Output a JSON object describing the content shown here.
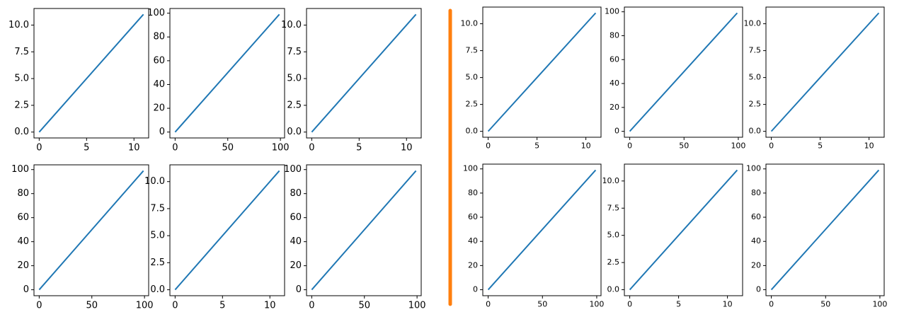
{
  "chart_data": [
    {
      "type": "line",
      "x": [
        0,
        11
      ],
      "values": [
        0,
        11
      ],
      "color": "#1f77b4",
      "xlim": [
        -0.55,
        11.55
      ],
      "ylim": [
        -0.55,
        11.55
      ],
      "xticks": [
        0,
        5,
        10
      ],
      "yticks": [
        {
          "value": 0,
          "label": "0.0"
        },
        {
          "value": 2.5,
          "label": "2.5"
        },
        {
          "value": 5,
          "label": "5.0"
        },
        {
          "value": 7.5,
          "label": "7.5"
        },
        {
          "value": 10,
          "label": "10.0"
        }
      ]
    },
    {
      "type": "line",
      "x": [
        0,
        99
      ],
      "values": [
        0,
        99
      ],
      "color": "#1f77b4",
      "xlim": [
        -4.95,
        103.95
      ],
      "ylim": [
        -4.95,
        103.95
      ],
      "xticks": [
        0,
        50,
        100
      ],
      "yticks": [
        0,
        20,
        40,
        60,
        80,
        100
      ]
    },
    {
      "type": "line",
      "x": [
        0,
        11
      ],
      "values": [
        0,
        11
      ],
      "color": "#1f77b4",
      "xlim": [
        -0.55,
        11.55
      ],
      "ylim": [
        -0.55,
        11.55
      ],
      "xticks": [
        0,
        5,
        10
      ],
      "yticks": [
        {
          "value": 0,
          "label": "0.0"
        },
        {
          "value": 2.5,
          "label": "2.5"
        },
        {
          "value": 5,
          "label": "5.0"
        },
        {
          "value": 7.5,
          "label": "7.5"
        },
        {
          "value": 10,
          "label": "10.0"
        }
      ]
    },
    {
      "type": "line",
      "x": [
        0,
        99
      ],
      "values": [
        0,
        99
      ],
      "color": "#1f77b4",
      "xlim": [
        -4.95,
        103.95
      ],
      "ylim": [
        -4.95,
        103.95
      ],
      "xticks": [
        0,
        50,
        100
      ],
      "yticks": [
        0,
        20,
        40,
        60,
        80,
        100
      ]
    },
    {
      "type": "line",
      "x": [
        0,
        11
      ],
      "values": [
        0,
        11
      ],
      "color": "#1f77b4",
      "xlim": [
        -0.55,
        11.55
      ],
      "ylim": [
        -0.55,
        11.55
      ],
      "xticks": [
        0,
        5,
        10
      ],
      "yticks": [
        {
          "value": 0,
          "label": "0.0"
        },
        {
          "value": 2.5,
          "label": "2.5"
        },
        {
          "value": 5,
          "label": "5.0"
        },
        {
          "value": 7.5,
          "label": "7.5"
        },
        {
          "value": 10,
          "label": "10.0"
        }
      ]
    },
    {
      "type": "line",
      "x": [
        0,
        99
      ],
      "values": [
        0,
        99
      ],
      "color": "#1f77b4",
      "xlim": [
        -4.95,
        103.95
      ],
      "ylim": [
        -4.95,
        103.95
      ],
      "xticks": [
        0,
        50,
        100
      ],
      "yticks": [
        0,
        20,
        40,
        60,
        80,
        100
      ]
    },
    {
      "type": "line",
      "x": [
        0,
        11
      ],
      "values": [
        0,
        11
      ],
      "color": "#1f77b4",
      "xlim": [
        -0.55,
        11.55
      ],
      "ylim": [
        -0.55,
        11.55
      ],
      "xticks": [
        0,
        5,
        10
      ],
      "yticks": [
        {
          "value": 0,
          "label": "0.0"
        },
        {
          "value": 2.5,
          "label": "2.5"
        },
        {
          "value": 5,
          "label": "5.0"
        },
        {
          "value": 7.5,
          "label": "7.5"
        },
        {
          "value": 10,
          "label": "10.0"
        }
      ]
    },
    {
      "type": "line",
      "x": [
        0,
        99
      ],
      "values": [
        0,
        99
      ],
      "color": "#1f77b4",
      "xlim": [
        -4.95,
        103.95
      ],
      "ylim": [
        -4.95,
        103.95
      ],
      "xticks": [
        0,
        50,
        100
      ],
      "yticks": [
        0,
        20,
        40,
        60,
        80,
        100
      ]
    },
    {
      "type": "line",
      "x": [
        0,
        11
      ],
      "values": [
        0,
        11
      ],
      "color": "#1f77b4",
      "xlim": [
        -0.55,
        11.55
      ],
      "ylim": [
        -0.55,
        11.55
      ],
      "xticks": [
        0,
        5,
        10
      ],
      "yticks": [
        {
          "value": 0,
          "label": "0.0"
        },
        {
          "value": 2.5,
          "label": "2.5"
        },
        {
          "value": 5,
          "label": "5.0"
        },
        {
          "value": 7.5,
          "label": "7.5"
        },
        {
          "value": 10,
          "label": "10.0"
        }
      ]
    },
    {
      "type": "line",
      "x": [
        0,
        99
      ],
      "values": [
        0,
        99
      ],
      "color": "#1f77b4",
      "xlim": [
        -4.95,
        103.95
      ],
      "ylim": [
        -4.95,
        103.95
      ],
      "xticks": [
        0,
        50,
        100
      ],
      "yticks": [
        0,
        20,
        40,
        60,
        80,
        100
      ]
    },
    {
      "type": "line",
      "x": [
        0,
        11
      ],
      "values": [
        0,
        11
      ],
      "color": "#1f77b4",
      "xlim": [
        -0.55,
        11.55
      ],
      "ylim": [
        -0.55,
        11.55
      ],
      "xticks": [
        0,
        5,
        10
      ],
      "yticks": [
        {
          "value": 0,
          "label": "0.0"
        },
        {
          "value": 2.5,
          "label": "2.5"
        },
        {
          "value": 5,
          "label": "5.0"
        },
        {
          "value": 7.5,
          "label": "7.5"
        },
        {
          "value": 10,
          "label": "10.0"
        }
      ]
    },
    {
      "type": "line",
      "x": [
        0,
        99
      ],
      "values": [
        0,
        99
      ],
      "color": "#1f77b4",
      "xlim": [
        -4.95,
        103.95
      ],
      "ylim": [
        -4.95,
        103.95
      ],
      "xticks": [
        0,
        50,
        100
      ],
      "yticks": [
        0,
        20,
        40,
        60,
        80,
        100
      ]
    }
  ]
}
